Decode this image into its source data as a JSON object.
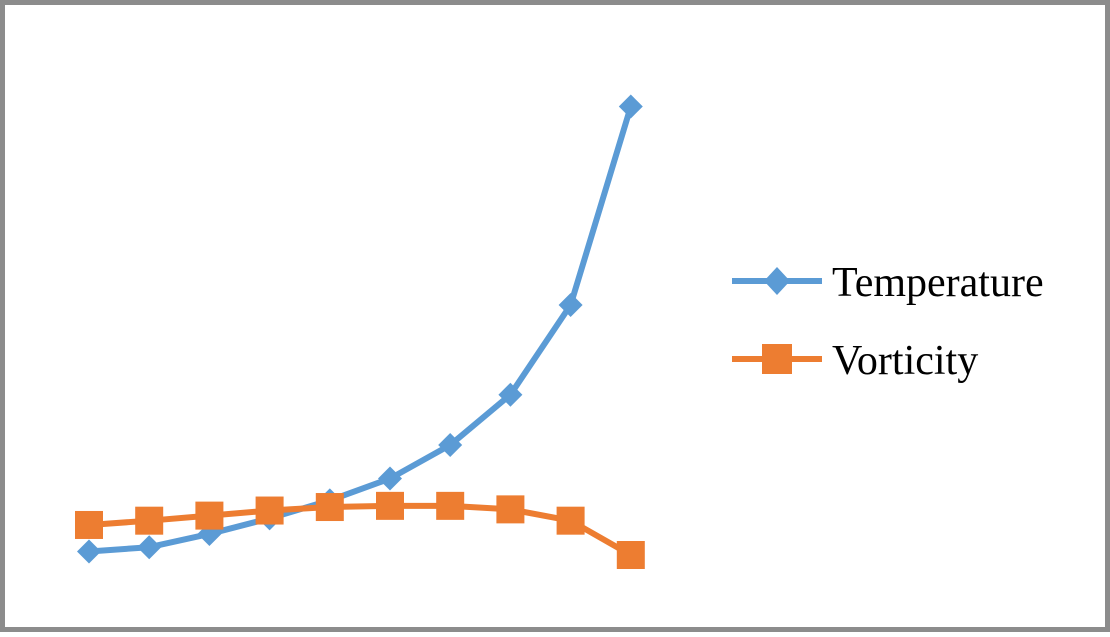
{
  "chart_data": {
    "type": "line",
    "title": "",
    "xlabel": "",
    "ylabel": "",
    "x": [
      1,
      2,
      3,
      4,
      5,
      6,
      7,
      8,
      9,
      10
    ],
    "ylim": [
      0,
      100
    ],
    "grid": false,
    "axes_visible": false,
    "legend_position": "right",
    "series": [
      {
        "name": "Temperature",
        "color": "#5b9bd5",
        "marker": "diamond",
        "values": [
          0.9,
          2.0,
          5.4,
          9.4,
          14.0,
          19.6,
          28.2,
          41.1,
          64.1,
          115.0
        ]
      },
      {
        "name": "Vorticity",
        "color": "#ed7d31",
        "marker": "square",
        "values": [
          7.7,
          8.8,
          10.1,
          11.4,
          12.3,
          12.6,
          12.6,
          11.7,
          8.8,
          0.0
        ]
      }
    ]
  }
}
